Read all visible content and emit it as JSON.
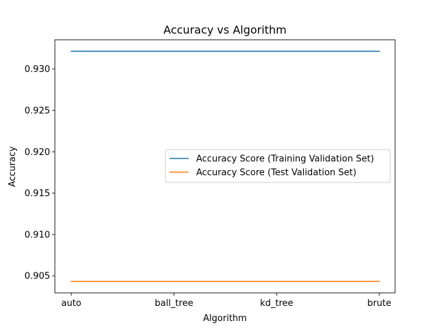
{
  "chart_data": {
    "type": "line",
    "title": "Accuracy vs Algorithm",
    "xlabel": "Algorithm",
    "ylabel": "Accuracy",
    "categories": [
      "auto",
      "ball_tree",
      "kd_tree",
      "brute"
    ],
    "series": [
      {
        "name": "Accuracy Score (Training Validation Set)",
        "color": "#1f77b4",
        "values": [
          0.93216,
          0.93216,
          0.93216,
          0.93216
        ]
      },
      {
        "name": "Accuracy Score (Test Validation Set)",
        "color": "#ff7f0e",
        "values": [
          0.90432,
          0.90432,
          0.90432,
          0.90432
        ]
      }
    ],
    "ylim": [
      0.90294,
      0.93354
    ],
    "yticks": [
      0.905,
      0.91,
      0.915,
      0.92,
      0.925,
      0.93
    ],
    "ytick_labels": [
      "0.905",
      "0.910",
      "0.915",
      "0.920",
      "0.925",
      "0.930"
    ],
    "grid": false,
    "legend_position": "center-right"
  }
}
